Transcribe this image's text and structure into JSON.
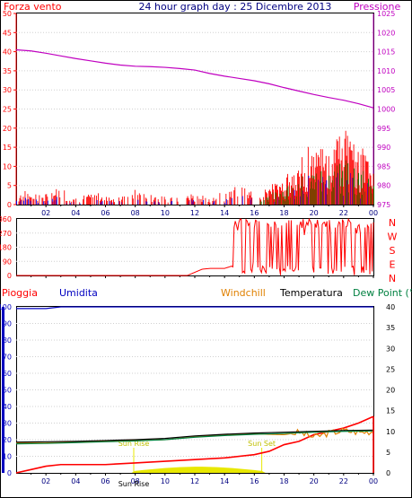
{
  "header": {
    "left": "Forza vento",
    "center": "24 hour graph day : 25 Dicembre 2013",
    "right": "Pressione"
  },
  "colors": {
    "wind": "#ff0000",
    "wind_blue": "#0000ff",
    "wind_green": "#008000",
    "pressure": "#c000c0",
    "title": "#000080",
    "rain": "#ff0000",
    "humidity": "#0000c0",
    "windchill": "#e08000",
    "temperature": "#000000",
    "dewpoint": "#008040",
    "sun": "#e8e800"
  },
  "chart_data": [
    {
      "type": "line",
      "panel": "wind-pressure",
      "x_ticks": [
        "02",
        "04",
        "06",
        "08",
        "10",
        "12",
        "14",
        "16",
        "18",
        "20",
        "22",
        "00"
      ],
      "left_axis": {
        "label": "Forza vento",
        "ylim": [
          0,
          50
        ],
        "ticks": [
          "0",
          "5",
          "10",
          "15",
          "20",
          "25",
          "30",
          "35",
          "40",
          "45",
          "50"
        ]
      },
      "right_axis": {
        "label": "Pressione",
        "ylim": [
          975,
          1025
        ],
        "ticks": [
          "975",
          "980",
          "985",
          "990",
          "995",
          "1000",
          "1005",
          "1010",
          "1015",
          "1020",
          "1025"
        ]
      },
      "series": [
        {
          "name": "Pressione",
          "axis": "right",
          "x": [
            0,
            1,
            2,
            3,
            4,
            5,
            6,
            7,
            8,
            9,
            10,
            11,
            12,
            13,
            14,
            15,
            16,
            17,
            18,
            19,
            20,
            21,
            22,
            23,
            24
          ],
          "values": [
            1015.5,
            1015.2,
            1014.6,
            1013.9,
            1013.2,
            1012.6,
            1012.0,
            1011.5,
            1011.2,
            1011.1,
            1010.9,
            1010.6,
            1010.2,
            1009.3,
            1008.6,
            1008.0,
            1007.4,
            1006.6,
            1005.6,
            1004.7,
            1003.8,
            1003.0,
            1002.3,
            1001.4,
            1000.3
          ]
        },
        {
          "name": "Forza vento",
          "axis": "left",
          "x": [
            0,
            1,
            2,
            3,
            4,
            5,
            6,
            7,
            8,
            9,
            10,
            11,
            12,
            13,
            14,
            15,
            16,
            17,
            18,
            19,
            20,
            21,
            22,
            23,
            24
          ],
          "values": [
            3,
            4,
            3,
            5,
            2,
            3,
            3,
            2,
            4,
            3,
            2,
            3,
            3,
            2,
            4,
            5,
            3,
            5,
            7,
            12,
            18,
            14,
            20,
            16,
            12
          ]
        }
      ]
    },
    {
      "type": "line",
      "panel": "wind-direction",
      "x_ticks": [
        "02",
        "04",
        "06",
        "08",
        "10",
        "12",
        "14",
        "16",
        "18",
        "20",
        "22",
        "00"
      ],
      "left_axis": {
        "ylim": [
          0,
          360
        ],
        "ticks": [
          "0",
          "90",
          "180",
          "270",
          "360"
        ]
      },
      "right_axis": {
        "ticks": [
          "N",
          "E",
          "S",
          "W",
          "N"
        ]
      },
      "series": [
        {
          "name": "Direzione",
          "x": [
            0,
            11.5,
            12.5,
            13,
            14,
            14.5,
            15,
            15.5,
            16,
            16.5,
            17,
            17.5,
            18,
            18.5,
            19,
            19.5,
            20,
            20.5,
            21,
            21.5,
            22,
            22.5,
            23,
            23.5,
            24
          ],
          "values": [
            0,
            0,
            40,
            45,
            45,
            60,
            360,
            355,
            30,
            20,
            350,
            40,
            30,
            340,
            20,
            350,
            40,
            330,
            350,
            20,
            340,
            10,
            350,
            20,
            350
          ]
        }
      ]
    },
    {
      "type": "line",
      "panel": "rain-humidity-temperature",
      "x_ticks": [
        "02",
        "04",
        "06",
        "08",
        "10",
        "12",
        "14",
        "16",
        "18",
        "20",
        "22",
        "00"
      ],
      "left_axis": {
        "ylim": [
          0,
          100
        ],
        "ticks": [
          "0",
          "10",
          "20",
          "30",
          "40",
          "50",
          "60",
          "70",
          "80",
          "90",
          "100"
        ]
      },
      "right_axis": {
        "ylim": [
          0,
          40
        ],
        "ticks": [
          "0",
          "5",
          "10",
          "15",
          "20",
          "25",
          "30",
          "35",
          "40"
        ]
      },
      "annotations": [
        "Sun Rise",
        "Sun Set",
        "Sun Rise"
      ],
      "series": [
        {
          "name": "Pioggia",
          "axis": "left",
          "x": [
            0,
            1,
            2,
            3,
            4,
            6,
            8,
            10,
            12,
            14,
            16,
            17,
            18,
            19,
            20,
            21,
            22,
            23,
            24
          ],
          "values": [
            0,
            2,
            4,
            5,
            5,
            5,
            6,
            7,
            8,
            9,
            11,
            13,
            17,
            19,
            23,
            25,
            27,
            30,
            34
          ]
        },
        {
          "name": "Umidita",
          "axis": "left",
          "x": [
            0,
            2,
            3,
            24
          ],
          "values": [
            99,
            99,
            100,
            100
          ]
        },
        {
          "name": "Windchill",
          "axis": "right",
          "x": [
            0,
            2,
            4,
            6,
            8,
            10,
            12,
            14,
            16,
            18,
            19,
            20,
            21,
            22,
            23,
            24
          ],
          "values": [
            7.2,
            7.2,
            7.4,
            7.6,
            7.8,
            8.0,
            8.7,
            9.2,
            9.4,
            9.2,
            9.8,
            8.6,
            9.6,
            10.2,
            9.8,
            10.0
          ]
        },
        {
          "name": "Temperatura",
          "axis": "right",
          "x": [
            0,
            2,
            4,
            6,
            8,
            10,
            12,
            14,
            16,
            18,
            20,
            22,
            24
          ],
          "values": [
            7.4,
            7.5,
            7.6,
            7.8,
            8.0,
            8.3,
            8.9,
            9.3,
            9.6,
            9.8,
            10.0,
            10.2,
            10.3
          ]
        },
        {
          "name": "Dew Point",
          "axis": "right",
          "x": [
            0,
            2,
            4,
            6,
            8,
            10,
            12,
            14,
            16,
            18,
            20,
            22,
            24
          ],
          "values": [
            7.0,
            7.1,
            7.3,
            7.5,
            7.7,
            8.0,
            8.6,
            9.0,
            9.3,
            9.5,
            9.8,
            10.0,
            10.1
          ]
        }
      ]
    }
  ],
  "legend": {
    "pioggia": "Pioggia",
    "umidita": "Umidita",
    "windchill": "Windchill",
    "temperatura": "Temperatura",
    "dewpoint": "Dew Point (°C"
  }
}
